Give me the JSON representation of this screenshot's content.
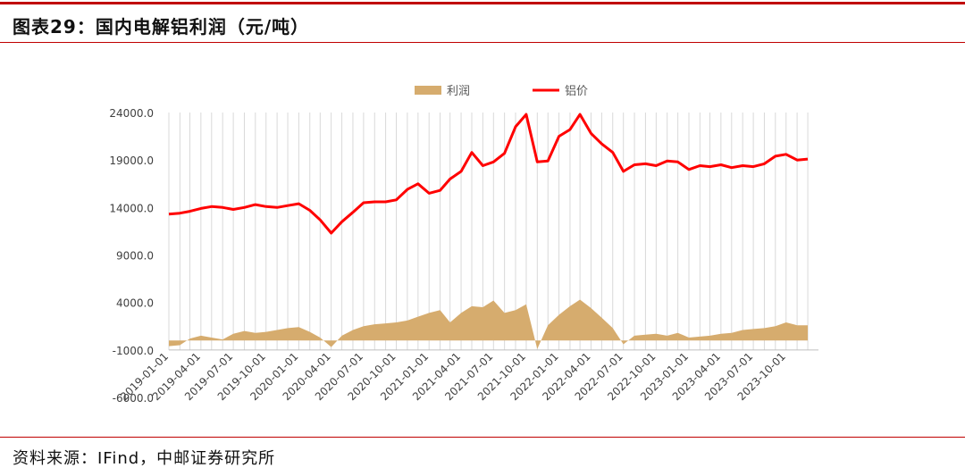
{
  "title": "图表29：国内电解铝利润（元/吨）",
  "source": "资料来源：IFind，中邮证券研究所",
  "colors": {
    "rule": "#c00000",
    "profit": "#d6ac6e",
    "price": "#ff0000",
    "grid": "#d9d9d9"
  },
  "chart_data": {
    "type": "line",
    "series": [
      {
        "name": "利润",
        "kind": "area",
        "color": "#d6ac6e",
        "points": [
          [
            "2019-01-01",
            -600
          ],
          [
            "2019-02-01",
            -500
          ],
          [
            "2019-03-01",
            200
          ],
          [
            "2019-04-01",
            500
          ],
          [
            "2019-05-01",
            300
          ],
          [
            "2019-06-01",
            100
          ],
          [
            "2019-07-01",
            700
          ],
          [
            "2019-08-01",
            1000
          ],
          [
            "2019-09-01",
            800
          ],
          [
            "2019-10-01",
            900
          ],
          [
            "2019-11-01",
            1100
          ],
          [
            "2019-12-01",
            1300
          ],
          [
            "2020-01-01",
            1400
          ],
          [
            "2020-02-01",
            900
          ],
          [
            "2020-03-01",
            300
          ],
          [
            "2020-04-01",
            -700
          ],
          [
            "2020-05-01",
            500
          ],
          [
            "2020-06-01",
            1100
          ],
          [
            "2020-07-01",
            1500
          ],
          [
            "2020-08-01",
            1700
          ],
          [
            "2020-09-01",
            1800
          ],
          [
            "2020-10-01",
            1900
          ],
          [
            "2020-11-01",
            2100
          ],
          [
            "2020-12-01",
            2500
          ],
          [
            "2021-01-01",
            2900
          ],
          [
            "2021-02-01",
            3200
          ],
          [
            "2021-03-01",
            1900
          ],
          [
            "2021-04-01",
            2900
          ],
          [
            "2021-05-01",
            3600
          ],
          [
            "2021-06-01",
            3500
          ],
          [
            "2021-07-01",
            4200
          ],
          [
            "2021-08-01",
            2900
          ],
          [
            "2021-09-01",
            3200
          ],
          [
            "2021-10-01",
            3800
          ],
          [
            "2021-11-01",
            -900
          ],
          [
            "2021-12-01",
            1600
          ],
          [
            "2022-01-01",
            2700
          ],
          [
            "2022-02-01",
            3600
          ],
          [
            "2022-03-01",
            4300
          ],
          [
            "2022-04-01",
            3400
          ],
          [
            "2022-05-01",
            2400
          ],
          [
            "2022-06-01",
            1300
          ],
          [
            "2022-07-01",
            -400
          ],
          [
            "2022-08-01",
            500
          ],
          [
            "2022-09-01",
            600
          ],
          [
            "2022-10-01",
            700
          ],
          [
            "2022-11-01",
            500
          ],
          [
            "2022-12-01",
            800
          ],
          [
            "2023-01-01",
            300
          ],
          [
            "2023-02-01",
            400
          ],
          [
            "2023-03-01",
            500
          ],
          [
            "2023-04-01",
            700
          ],
          [
            "2023-05-01",
            800
          ],
          [
            "2023-06-01",
            1100
          ],
          [
            "2023-07-01",
            1200
          ],
          [
            "2023-08-01",
            1300
          ],
          [
            "2023-09-01",
            1500
          ],
          [
            "2023-10-01",
            1900
          ],
          [
            "2023-11-01",
            1600
          ],
          [
            "2023-12-01",
            1600
          ]
        ]
      },
      {
        "name": "铝价",
        "kind": "line",
        "color": "#ff0000",
        "points": [
          [
            "2019-01-01",
            13300
          ],
          [
            "2019-02-01",
            13400
          ],
          [
            "2019-03-01",
            13600
          ],
          [
            "2019-04-01",
            13900
          ],
          [
            "2019-05-01",
            14100
          ],
          [
            "2019-06-01",
            14000
          ],
          [
            "2019-07-01",
            13800
          ],
          [
            "2019-08-01",
            14000
          ],
          [
            "2019-09-01",
            14300
          ],
          [
            "2019-10-01",
            14100
          ],
          [
            "2019-11-01",
            14000
          ],
          [
            "2019-12-01",
            14200
          ],
          [
            "2020-01-01",
            14400
          ],
          [
            "2020-02-01",
            13700
          ],
          [
            "2020-03-01",
            12700
          ],
          [
            "2020-04-01",
            11300
          ],
          [
            "2020-05-01",
            12500
          ],
          [
            "2020-06-01",
            13500
          ],
          [
            "2020-07-01",
            14500
          ],
          [
            "2020-08-01",
            14600
          ],
          [
            "2020-09-01",
            14600
          ],
          [
            "2020-10-01",
            14800
          ],
          [
            "2020-11-01",
            15900
          ],
          [
            "2020-12-01",
            16500
          ],
          [
            "2021-01-01",
            15500
          ],
          [
            "2021-02-01",
            15800
          ],
          [
            "2021-03-01",
            17000
          ],
          [
            "2021-04-01",
            17800
          ],
          [
            "2021-05-01",
            19800
          ],
          [
            "2021-06-01",
            18400
          ],
          [
            "2021-07-01",
            18800
          ],
          [
            "2021-08-01",
            19700
          ],
          [
            "2021-09-01",
            22500
          ],
          [
            "2021-10-01",
            23800
          ],
          [
            "2021-11-01",
            18800
          ],
          [
            "2021-12-01",
            18900
          ],
          [
            "2022-01-01",
            21500
          ],
          [
            "2022-02-01",
            22200
          ],
          [
            "2022-03-01",
            23800
          ],
          [
            "2022-04-01",
            21800
          ],
          [
            "2022-05-01",
            20700
          ],
          [
            "2022-06-01",
            19800
          ],
          [
            "2022-07-01",
            17800
          ],
          [
            "2022-08-01",
            18500
          ],
          [
            "2022-09-01",
            18600
          ],
          [
            "2022-10-01",
            18400
          ],
          [
            "2022-11-01",
            18900
          ],
          [
            "2022-12-01",
            18800
          ],
          [
            "2023-01-01",
            18000
          ],
          [
            "2023-02-01",
            18400
          ],
          [
            "2023-03-01",
            18300
          ],
          [
            "2023-04-01",
            18500
          ],
          [
            "2023-05-01",
            18200
          ],
          [
            "2023-06-01",
            18400
          ],
          [
            "2023-07-01",
            18300
          ],
          [
            "2023-08-01",
            18600
          ],
          [
            "2023-09-01",
            19400
          ],
          [
            "2023-10-01",
            19600
          ],
          [
            "2023-11-01",
            19000
          ],
          [
            "2023-12-01",
            19100
          ]
        ]
      }
    ],
    "x_tick_labels": [
      "2019-01-01",
      "2019-04-01",
      "2019-07-01",
      "2019-10-01",
      "2020-01-01",
      "2020-04-01",
      "2020-07-01",
      "2020-10-01",
      "2021-01-01",
      "2021-04-01",
      "2021-07-01",
      "2021-10-01",
      "2022-01-01",
      "2022-04-01",
      "2022-07-01",
      "2022-10-01",
      "2023-01-01",
      "2023-04-01",
      "2023-07-01",
      "2023-10-01"
    ],
    "y_tick_labels": [
      "24000.0",
      "19000.0",
      "14000.0",
      "9000.0",
      "4000.0",
      "-1000.0",
      "-6000.0"
    ],
    "y_ticks": [
      24000,
      19000,
      14000,
      9000,
      4000,
      -1000,
      -6000
    ],
    "xlim": [
      "2019-01-01",
      "2023-12-31"
    ],
    "ylim": [
      -6000,
      24000
    ],
    "grid": "vertical",
    "legend_position": "top-center"
  }
}
